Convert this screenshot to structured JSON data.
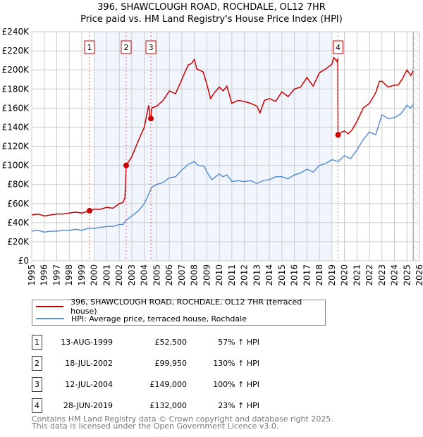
{
  "title_line1": "396, SHAWCLOUGH ROAD, ROCHDALE, OL12 7HR",
  "title_line2": "Price paid vs. HM Land Registry's House Price Index (HPI)",
  "chart_data": {
    "type": "line",
    "title": "396, SHAWCLOUGH ROAD, ROCHDALE, OL12 7HR — Price paid vs. HM Land Registry's House Price Index (HPI)",
    "xlim": [
      1995,
      2026
    ],
    "ylim": [
      0,
      240000
    ],
    "x_ticks": [
      "1995",
      "1996",
      "1997",
      "1998",
      "1999",
      "2000",
      "2001",
      "2002",
      "2003",
      "2004",
      "2005",
      "2006",
      "2007",
      "2008",
      "2009",
      "2010",
      "2011",
      "2012",
      "2013",
      "2014",
      "2015",
      "2016",
      "2017",
      "2018",
      "2019",
      "2020",
      "2021",
      "2022",
      "2023",
      "2024",
      "2025",
      "2026"
    ],
    "y_ticks": [
      {
        "v": 0,
        "label": "£0"
      },
      {
        "v": 20000,
        "label": "£20K"
      },
      {
        "v": 40000,
        "label": "£40K"
      },
      {
        "v": 60000,
        "label": "£60K"
      },
      {
        "v": 80000,
        "label": "£80K"
      },
      {
        "v": 100000,
        "label": "£100K"
      },
      {
        "v": 120000,
        "label": "£120K"
      },
      {
        "v": 140000,
        "label": "£140K"
      },
      {
        "v": 160000,
        "label": "£160K"
      },
      {
        "v": 180000,
        "label": "£180K"
      },
      {
        "v": 200000,
        "label": "£200K"
      },
      {
        "v": 220000,
        "label": "£220K"
      },
      {
        "v": 240000,
        "label": "£240K"
      }
    ],
    "grid": true,
    "shaded_range": [
      2000,
      2019
    ],
    "forecast_hatch_from": 2025.5,
    "legend_placement": "below",
    "series": [
      {
        "name": "396, SHAWCLOUGH ROAD, ROCHDALE, OL12 7HR (terraced house)",
        "color": "#cc0000",
        "points": [
          [
            1995,
            48
          ],
          [
            1995.5,
            49
          ],
          [
            1996,
            47
          ],
          [
            1996.5,
            48
          ],
          [
            1997,
            49
          ],
          [
            1997.5,
            49
          ],
          [
            1998,
            50
          ],
          [
            1998.5,
            51
          ],
          [
            1999,
            50
          ],
          [
            1999.62,
            52.5
          ],
          [
            2000,
            54
          ],
          [
            2000.5,
            54
          ],
          [
            2001,
            56
          ],
          [
            2001.5,
            55
          ],
          [
            2002,
            60
          ],
          [
            2002.3,
            61
          ],
          [
            2002.45,
            66
          ],
          [
            2002.55,
            100
          ],
          [
            2002.8,
            105
          ],
          [
            2003,
            109
          ],
          [
            2003.5,
            125
          ],
          [
            2004,
            140
          ],
          [
            2004.35,
            163
          ],
          [
            2004.45,
            152
          ],
          [
            2004.53,
            149
          ],
          [
            2004.6,
            160
          ],
          [
            2005,
            162
          ],
          [
            2005.5,
            168
          ],
          [
            2006,
            178
          ],
          [
            2006.5,
            175
          ],
          [
            2007,
            190
          ],
          [
            2007.5,
            205
          ],
          [
            2007.8,
            207
          ],
          [
            2008,
            211
          ],
          [
            2008.2,
            201
          ],
          [
            2008.7,
            198
          ],
          [
            2009,
            185
          ],
          [
            2009.3,
            170
          ],
          [
            2009.6,
            176
          ],
          [
            2010,
            182
          ],
          [
            2010.3,
            178
          ],
          [
            2010.6,
            183
          ],
          [
            2011,
            165
          ],
          [
            2011.5,
            168
          ],
          [
            2012,
            167
          ],
          [
            2012.5,
            165
          ],
          [
            2013,
            162
          ],
          [
            2013.25,
            155
          ],
          [
            2013.6,
            168
          ],
          [
            2014,
            170
          ],
          [
            2014.5,
            167
          ],
          [
            2015,
            177
          ],
          [
            2015.5,
            172
          ],
          [
            2016,
            180
          ],
          [
            2016.5,
            182
          ],
          [
            2017,
            192
          ],
          [
            2017.5,
            183
          ],
          [
            2018,
            197
          ],
          [
            2018.5,
            201
          ],
          [
            2019,
            206
          ],
          [
            2019.15,
            213
          ],
          [
            2019.4,
            209
          ],
          [
            2019.47,
            212
          ],
          [
            2019.49,
            132
          ],
          [
            2019.8,
            135
          ],
          [
            2020,
            136
          ],
          [
            2020.3,
            133
          ],
          [
            2020.6,
            137
          ],
          [
            2021,
            146
          ],
          [
            2021.5,
            160
          ],
          [
            2022,
            165
          ],
          [
            2022.5,
            176
          ],
          [
            2022.8,
            188
          ],
          [
            2023,
            188
          ],
          [
            2023.5,
            182
          ],
          [
            2024,
            184
          ],
          [
            2024.3,
            184
          ],
          [
            2024.6,
            190
          ],
          [
            2025,
            200
          ],
          [
            2025.3,
            194
          ],
          [
            2025.5,
            199
          ]
        ]
      },
      {
        "name": "HPI: Average price, terraced house, Rochdale",
        "color": "#5b8fd4",
        "points": [
          [
            1995,
            31
          ],
          [
            1995.5,
            32
          ],
          [
            1996,
            30
          ],
          [
            1996.5,
            31
          ],
          [
            1997,
            31
          ],
          [
            1997.5,
            32
          ],
          [
            1998,
            32
          ],
          [
            1998.5,
            33
          ],
          [
            1999,
            32
          ],
          [
            1999.5,
            34
          ],
          [
            2000,
            34
          ],
          [
            2000.5,
            35
          ],
          [
            2001,
            36
          ],
          [
            2001.5,
            36
          ],
          [
            2002,
            38
          ],
          [
            2002.3,
            38
          ],
          [
            2002.5,
            42
          ],
          [
            2003,
            47
          ],
          [
            2003.5,
            52
          ],
          [
            2004,
            60
          ],
          [
            2004.6,
            77
          ],
          [
            2005,
            80
          ],
          [
            2005.5,
            82
          ],
          [
            2006,
            87
          ],
          [
            2006.5,
            88
          ],
          [
            2007,
            95
          ],
          [
            2007.5,
            101
          ],
          [
            2008,
            104
          ],
          [
            2008.3,
            100
          ],
          [
            2008.8,
            99
          ],
          [
            2009,
            93
          ],
          [
            2009.4,
            85
          ],
          [
            2009.7,
            88
          ],
          [
            2010,
            91
          ],
          [
            2010.3,
            88
          ],
          [
            2010.6,
            90
          ],
          [
            2011,
            83
          ],
          [
            2011.5,
            84
          ],
          [
            2012,
            83
          ],
          [
            2012.5,
            84
          ],
          [
            2013,
            81
          ],
          [
            2013.5,
            84
          ],
          [
            2014,
            85
          ],
          [
            2014.5,
            88
          ],
          [
            2015,
            88
          ],
          [
            2015.5,
            86
          ],
          [
            2016,
            90
          ],
          [
            2016.5,
            92
          ],
          [
            2017,
            96
          ],
          [
            2017.5,
            93
          ],
          [
            2018,
            100
          ],
          [
            2018.5,
            102
          ],
          [
            2019,
            106
          ],
          [
            2019.5,
            104
          ],
          [
            2020,
            110
          ],
          [
            2020.5,
            107
          ],
          [
            2021,
            116
          ],
          [
            2021.5,
            127
          ],
          [
            2022,
            135
          ],
          [
            2022.5,
            132
          ],
          [
            2023,
            153
          ],
          [
            2023.5,
            149
          ],
          [
            2024,
            150
          ],
          [
            2024.5,
            154
          ],
          [
            2025,
            163
          ],
          [
            2025.3,
            160
          ],
          [
            2025.5,
            164
          ]
        ]
      }
    ],
    "sales": [
      {
        "n": "1",
        "x": 1999.62,
        "y": 52.5
      },
      {
        "n": "2",
        "x": 2002.55,
        "y": 99.95
      },
      {
        "n": "3",
        "x": 2004.53,
        "y": 149
      },
      {
        "n": "4",
        "x": 2019.49,
        "y": 132
      }
    ]
  },
  "legend": {
    "property": "396, SHAWCLOUGH ROAD, ROCHDALE, OL12 7HR (terraced house)",
    "hpi": "HPI: Average price, terraced house, Rochdale"
  },
  "transactions": [
    {
      "n": "1",
      "date": "13-AUG-1999",
      "price": "£52,500",
      "hpi": "57% ↑ HPI"
    },
    {
      "n": "2",
      "date": "18-JUL-2002",
      "price": "£99,950",
      "hpi": "130% ↑ HPI"
    },
    {
      "n": "3",
      "date": "12-JUL-2004",
      "price": "£149,000",
      "hpi": "100% ↑ HPI"
    },
    {
      "n": "4",
      "date": "28-JUN-2019",
      "price": "£132,000",
      "hpi": "23% ↑ HPI"
    }
  ],
  "footer": {
    "line1": "Contains HM Land Registry data © Crown copyright and database right 2025.",
    "line2": "This data is licensed under the Open Government Licence v3.0."
  }
}
